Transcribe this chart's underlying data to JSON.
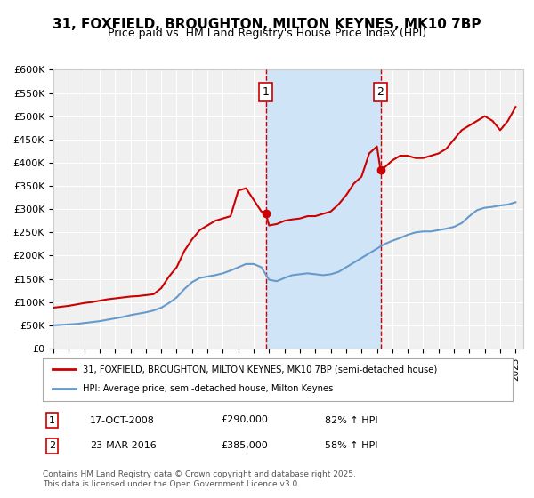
{
  "title": "31, FOXFIELD, BROUGHTON, MILTON KEYNES, MK10 7BP",
  "subtitle": "Price paid vs. HM Land Registry's House Price Index (HPI)",
  "title_fontsize": 11,
  "subtitle_fontsize": 9,
  "background_color": "#ffffff",
  "plot_bg_color": "#f0f0f0",
  "grid_color": "#ffffff",
  "house_color": "#cc0000",
  "hpi_color": "#6699cc",
  "shade_color": "#d0e4f7",
  "dashed_line_color": "#cc0000",
  "ylim": [
    0,
    600000
  ],
  "xlim": [
    1995,
    2025.5
  ],
  "yticks": [
    0,
    50000,
    100000,
    150000,
    200000,
    250000,
    300000,
    350000,
    400000,
    450000,
    500000,
    550000,
    600000
  ],
  "ytick_labels": [
    "£0",
    "£50K",
    "£100K",
    "£150K",
    "£200K",
    "£250K",
    "£300K",
    "£350K",
    "£400K",
    "£450K",
    "£500K",
    "£550K",
    "£600K"
  ],
  "xticks": [
    1995,
    1996,
    1997,
    1998,
    1999,
    2000,
    2001,
    2002,
    2003,
    2004,
    2005,
    2006,
    2007,
    2008,
    2009,
    2010,
    2011,
    2012,
    2013,
    2014,
    2015,
    2016,
    2017,
    2018,
    2019,
    2020,
    2021,
    2022,
    2023,
    2024,
    2025
  ],
  "sale1_x": 2008.79,
  "sale1_y": 290000,
  "sale1_label": "1",
  "sale2_x": 2016.23,
  "sale2_y": 385000,
  "sale2_label": "2",
  "shade_x1": 2008.79,
  "shade_x2": 2016.23,
  "annotation1_date": "17-OCT-2008",
  "annotation1_price": "£290,000",
  "annotation1_hpi": "82% ↑ HPI",
  "annotation2_date": "23-MAR-2016",
  "annotation2_price": "£385,000",
  "annotation2_hpi": "58% ↑ HPI",
  "legend_line1": "31, FOXFIELD, BROUGHTON, MILTON KEYNES, MK10 7BP (semi-detached house)",
  "legend_line2": "HPI: Average price, semi-detached house, Milton Keynes",
  "footer": "Contains HM Land Registry data © Crown copyright and database right 2025.\nThis data is licensed under the Open Government Licence v3.0.",
  "house_data": {
    "x": [
      1995.0,
      1995.5,
      1996.0,
      1996.5,
      1997.0,
      1997.5,
      1998.0,
      1998.5,
      1999.0,
      1999.5,
      2000.0,
      2000.5,
      2001.0,
      2001.5,
      2002.0,
      2002.5,
      2003.0,
      2003.5,
      2004.0,
      2004.5,
      2005.0,
      2005.5,
      2006.0,
      2006.5,
      2007.0,
      2007.5,
      2008.0,
      2008.5,
      2008.79,
      2009.0,
      2009.5,
      2010.0,
      2010.5,
      2011.0,
      2011.5,
      2012.0,
      2012.5,
      2013.0,
      2013.5,
      2014.0,
      2014.5,
      2015.0,
      2015.5,
      2016.0,
      2016.23,
      2016.5,
      2017.0,
      2017.5,
      2018.0,
      2018.5,
      2019.0,
      2019.5,
      2020.0,
      2020.5,
      2021.0,
      2021.5,
      2022.0,
      2022.5,
      2023.0,
      2023.5,
      2024.0,
      2024.5,
      2025.0
    ],
    "y": [
      88000,
      90000,
      92000,
      95000,
      98000,
      100000,
      103000,
      106000,
      108000,
      110000,
      112000,
      113000,
      115000,
      117000,
      130000,
      155000,
      175000,
      210000,
      235000,
      255000,
      265000,
      275000,
      280000,
      285000,
      340000,
      345000,
      320000,
      295000,
      290000,
      265000,
      268000,
      275000,
      278000,
      280000,
      285000,
      285000,
      290000,
      295000,
      310000,
      330000,
      355000,
      370000,
      420000,
      435000,
      385000,
      390000,
      405000,
      415000,
      415000,
      410000,
      410000,
      415000,
      420000,
      430000,
      450000,
      470000,
      480000,
      490000,
      500000,
      490000,
      470000,
      490000,
      520000
    ]
  },
  "hpi_data": {
    "x": [
      1995.0,
      1995.5,
      1996.0,
      1996.5,
      1997.0,
      1997.5,
      1998.0,
      1998.5,
      1999.0,
      1999.5,
      2000.0,
      2000.5,
      2001.0,
      2001.5,
      2002.0,
      2002.5,
      2003.0,
      2003.5,
      2004.0,
      2004.5,
      2005.0,
      2005.5,
      2006.0,
      2006.5,
      2007.0,
      2007.5,
      2008.0,
      2008.5,
      2009.0,
      2009.5,
      2010.0,
      2010.5,
      2011.0,
      2011.5,
      2012.0,
      2012.5,
      2013.0,
      2013.5,
      2014.0,
      2014.5,
      2015.0,
      2015.5,
      2016.0,
      2016.5,
      2017.0,
      2017.5,
      2018.0,
      2018.5,
      2019.0,
      2019.5,
      2020.0,
      2020.5,
      2021.0,
      2021.5,
      2022.0,
      2022.5,
      2023.0,
      2023.5,
      2024.0,
      2024.5,
      2025.0
    ],
    "y": [
      50000,
      51000,
      52000,
      53000,
      55000,
      57000,
      59000,
      62000,
      65000,
      68000,
      72000,
      75000,
      78000,
      82000,
      88000,
      98000,
      110000,
      128000,
      143000,
      152000,
      155000,
      158000,
      162000,
      168000,
      175000,
      182000,
      182000,
      175000,
      148000,
      145000,
      152000,
      158000,
      160000,
      162000,
      160000,
      158000,
      160000,
      165000,
      175000,
      185000,
      195000,
      205000,
      215000,
      225000,
      232000,
      238000,
      245000,
      250000,
      252000,
      252000,
      255000,
      258000,
      262000,
      270000,
      285000,
      298000,
      303000,
      305000,
      308000,
      310000,
      315000
    ]
  }
}
